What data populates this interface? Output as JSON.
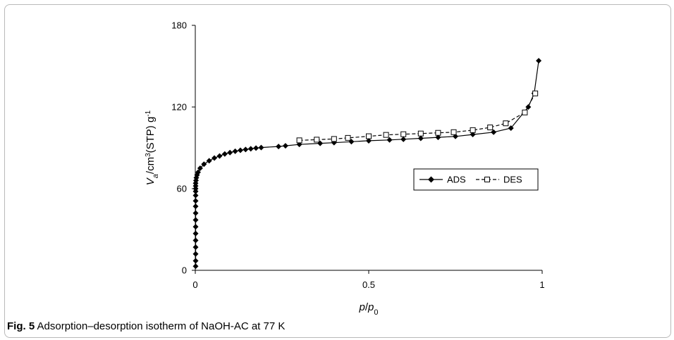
{
  "caption": {
    "label": "Fig. 5",
    "text": "Adsorption–desorption isotherm of NaOH-AC at 77 K"
  },
  "chart_data": {
    "type": "line",
    "xlabel": "p/p0",
    "ylabel": "Va/cm3(STP) g-1",
    "xlim": [
      0,
      1
    ],
    "ylim": [
      0,
      180
    ],
    "xticks": [
      0,
      0.5,
      1
    ],
    "yticks": [
      0,
      60,
      120,
      180
    ],
    "grid": false,
    "legend_position": "center-right",
    "series": [
      {
        "name": "ADS",
        "marker": "filled-diamond",
        "line": "solid",
        "color": "#000000",
        "x": [
          0.001,
          0.001,
          0.001,
          0.001,
          0.001,
          0.001,
          0.001,
          0.001,
          0.001,
          0.001,
          0.001,
          0.001,
          0.001,
          0.001,
          0.001,
          0.001,
          0.002,
          0.003,
          0.005,
          0.008,
          0.014,
          0.025,
          0.04,
          0.055,
          0.07,
          0.085,
          0.1,
          0.115,
          0.13,
          0.145,
          0.16,
          0.175,
          0.19,
          0.24,
          0.26,
          0.3,
          0.36,
          0.4,
          0.45,
          0.5,
          0.56,
          0.6,
          0.65,
          0.7,
          0.75,
          0.8,
          0.86,
          0.91,
          0.96,
          0.977,
          0.99
        ],
        "y": [
          3,
          7,
          12,
          17,
          22,
          27,
          32,
          37,
          42,
          47,
          51,
          55,
          58,
          60,
          62,
          64,
          66,
          68,
          70,
          72,
          75,
          78,
          80.5,
          82.5,
          84,
          85.5,
          86.5,
          87.5,
          88.2,
          88.8,
          89.3,
          89.8,
          90.2,
          91,
          91.5,
          92.5,
          93.3,
          93.8,
          94.5,
          95.2,
          95.8,
          96.3,
          97,
          97.7,
          98.4,
          99.8,
          101.5,
          104.5,
          120,
          130,
          154
        ]
      },
      {
        "name": "DES",
        "marker": "open-square",
        "line": "dashed",
        "color": "#000000",
        "x": [
          0.3,
          0.35,
          0.4,
          0.44,
          0.5,
          0.55,
          0.6,
          0.65,
          0.7,
          0.745,
          0.8,
          0.85,
          0.895,
          0.95,
          0.98
        ],
        "y": [
          95.5,
          96,
          96.5,
          97.3,
          98.5,
          99.5,
          100,
          100.5,
          101,
          101.5,
          103,
          105,
          108,
          116,
          130
        ]
      }
    ]
  }
}
